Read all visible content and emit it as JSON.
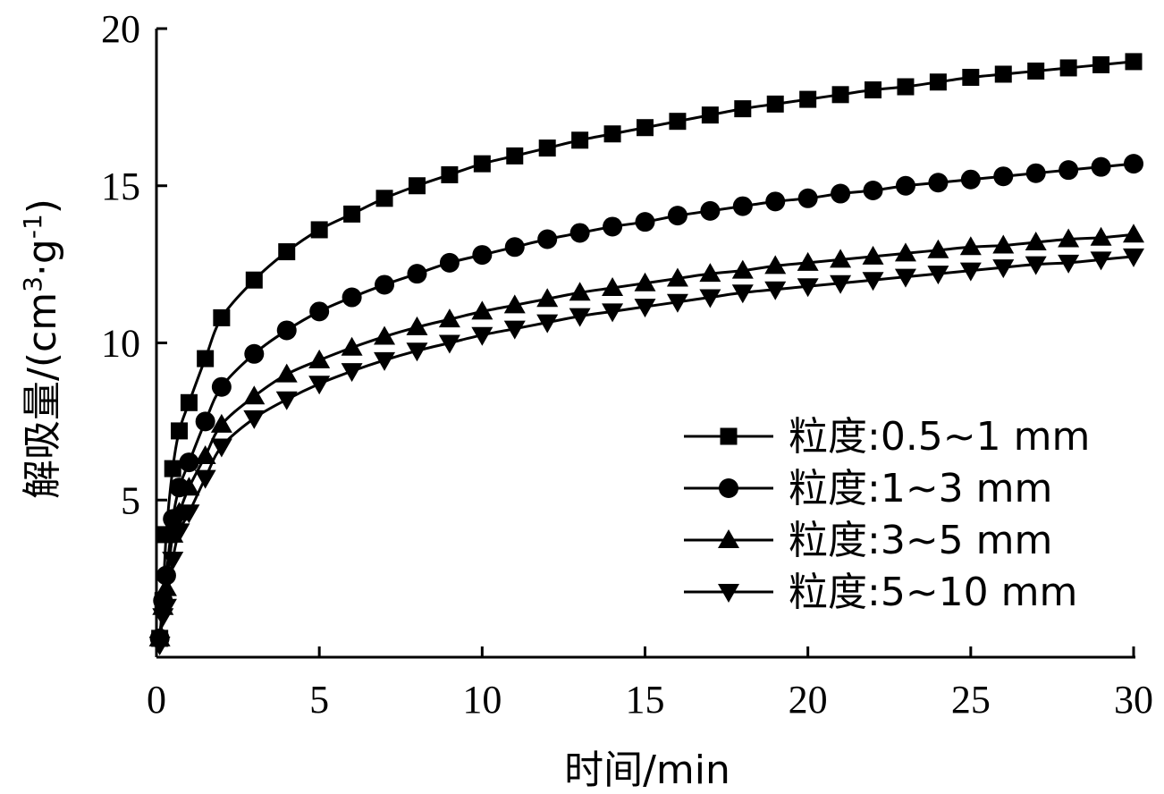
{
  "chart_data": {
    "type": "line",
    "title": "",
    "xlabel": "时间/min",
    "ylabel_main": "解吸量/(cm",
    "ylabel_sup1": "3",
    "ylabel_mid": "·g",
    "ylabel_sup2": "-1",
    "ylabel_end": ")",
    "xlim": [
      0,
      30
    ],
    "ylim": [
      0,
      20
    ],
    "xticks": [
      "0",
      "5",
      "10",
      "15",
      "20",
      "25",
      "30"
    ],
    "yticks": [
      "5",
      "10",
      "15",
      "20"
    ],
    "grid": false,
    "legend_position": "right",
    "series": [
      {
        "name": "粒度:0.5~1 mm",
        "marker": "square",
        "x": [
          0.1,
          0.2,
          0.3,
          0.5,
          0.7,
          1,
          1.5,
          2,
          3,
          4,
          5,
          6,
          7,
          8,
          9,
          10,
          11,
          12,
          13,
          14,
          15,
          16,
          17,
          18,
          19,
          20,
          21,
          22,
          23,
          24,
          25,
          26,
          27,
          28,
          29,
          30
        ],
        "y": [
          0.6,
          1.8,
          3.9,
          6.0,
          7.2,
          8.1,
          9.5,
          10.8,
          12.0,
          12.9,
          13.6,
          14.1,
          14.6,
          15.0,
          15.35,
          15.7,
          15.95,
          16.2,
          16.45,
          16.65,
          16.85,
          17.05,
          17.25,
          17.45,
          17.6,
          17.75,
          17.9,
          18.05,
          18.15,
          18.3,
          18.45,
          18.55,
          18.65,
          18.75,
          18.85,
          18.95
        ]
      },
      {
        "name": "粒度:1~3 mm",
        "marker": "circle",
        "x": [
          0.1,
          0.2,
          0.3,
          0.5,
          0.7,
          1,
          1.5,
          2,
          3,
          4,
          5,
          6,
          7,
          8,
          9,
          10,
          11,
          12,
          13,
          14,
          15,
          16,
          17,
          18,
          19,
          20,
          21,
          22,
          23,
          24,
          25,
          26,
          27,
          28,
          29,
          30
        ],
        "y": [
          0.6,
          1.8,
          2.6,
          4.4,
          5.4,
          6.2,
          7.5,
          8.6,
          9.65,
          10.4,
          11.0,
          11.45,
          11.85,
          12.2,
          12.55,
          12.8,
          13.05,
          13.3,
          13.5,
          13.7,
          13.85,
          14.05,
          14.2,
          14.35,
          14.5,
          14.6,
          14.75,
          14.85,
          15.0,
          15.1,
          15.2,
          15.3,
          15.4,
          15.5,
          15.6,
          15.7
        ]
      },
      {
        "name": "粒度:3~5 mm",
        "marker": "triangle-up",
        "x": [
          0.1,
          0.2,
          0.3,
          0.5,
          0.7,
          1,
          1.5,
          2,
          3,
          4,
          5,
          6,
          7,
          8,
          9,
          10,
          11,
          12,
          13,
          14,
          15,
          16,
          17,
          18,
          19,
          20,
          21,
          22,
          23,
          24,
          25,
          26,
          27,
          28,
          29,
          30
        ],
        "y": [
          0.6,
          1.6,
          2.2,
          3.9,
          4.6,
          5.4,
          6.4,
          7.4,
          8.3,
          9.0,
          9.45,
          9.85,
          10.2,
          10.5,
          10.75,
          11.0,
          11.2,
          11.4,
          11.6,
          11.75,
          11.9,
          12.05,
          12.2,
          12.3,
          12.45,
          12.55,
          12.65,
          12.75,
          12.85,
          12.95,
          13.05,
          13.1,
          13.2,
          13.3,
          13.35,
          13.45
        ]
      },
      {
        "name": "粒度:5~10 mm",
        "marker": "triangle-down",
        "x": [
          0.1,
          0.2,
          0.3,
          0.5,
          0.7,
          1,
          1.5,
          2,
          3,
          4,
          5,
          6,
          7,
          8,
          9,
          10,
          11,
          12,
          13,
          14,
          15,
          16,
          17,
          18,
          19,
          20,
          21,
          22,
          23,
          24,
          25,
          26,
          27,
          28,
          29,
          30
        ],
        "y": [
          0.4,
          1.3,
          1.6,
          3.1,
          4.0,
          4.6,
          5.7,
          6.7,
          7.6,
          8.2,
          8.7,
          9.1,
          9.45,
          9.75,
          10.0,
          10.25,
          10.45,
          10.65,
          10.85,
          11.0,
          11.15,
          11.3,
          11.45,
          11.6,
          11.7,
          11.8,
          11.9,
          12.0,
          12.1,
          12.2,
          12.3,
          12.4,
          12.5,
          12.55,
          12.65,
          12.75
        ]
      }
    ]
  }
}
